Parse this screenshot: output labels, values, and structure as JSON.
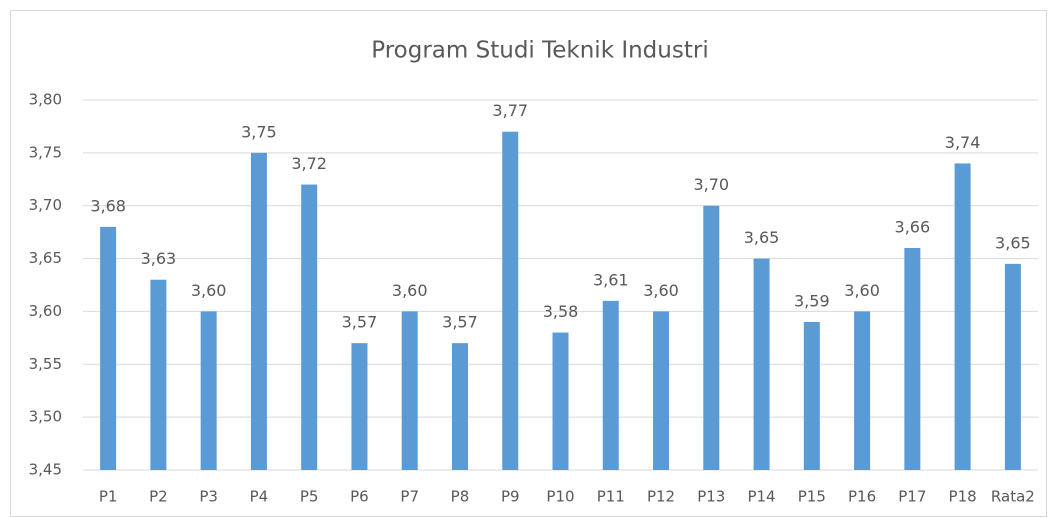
{
  "chart_data": {
    "type": "bar",
    "title": "Program Studi Teknik Industri",
    "categories": [
      "P1",
      "P2",
      "P3",
      "P4",
      "P5",
      "P6",
      "P7",
      "P8",
      "P9",
      "P10",
      "P11",
      "P12",
      "P13",
      "P14",
      "P15",
      "P16",
      "P17",
      "P18",
      "Rata2"
    ],
    "values": [
      3.68,
      3.63,
      3.6,
      3.75,
      3.72,
      3.57,
      3.6,
      3.57,
      3.77,
      3.58,
      3.61,
      3.6,
      3.7,
      3.65,
      3.59,
      3.6,
      3.66,
      3.74,
      3.645
    ],
    "value_labels": [
      "3,68",
      "3,63",
      "3,60",
      "3,75",
      "3,72",
      "3,57",
      "3,60",
      "3,57",
      "3,77",
      "3,58",
      "3,61",
      "3,60",
      "3,70",
      "3,65",
      "3,59",
      "3,60",
      "3,66",
      "3,74",
      "3,65"
    ],
    "color": "#5b9bd5",
    "ylim": [
      3.45,
      3.8
    ],
    "yticks": [
      {
        "value": 3.45,
        "label": "3,45"
      },
      {
        "value": 3.5,
        "label": "3,50"
      },
      {
        "value": 3.55,
        "label": "3,55"
      },
      {
        "value": 3.6,
        "label": "3,60"
      },
      {
        "value": 3.65,
        "label": "3,65"
      },
      {
        "value": 3.7,
        "label": "3,70"
      },
      {
        "value": 3.75,
        "label": "3,75"
      },
      {
        "value": 3.8,
        "label": "3,80"
      }
    ],
    "grid": true
  }
}
